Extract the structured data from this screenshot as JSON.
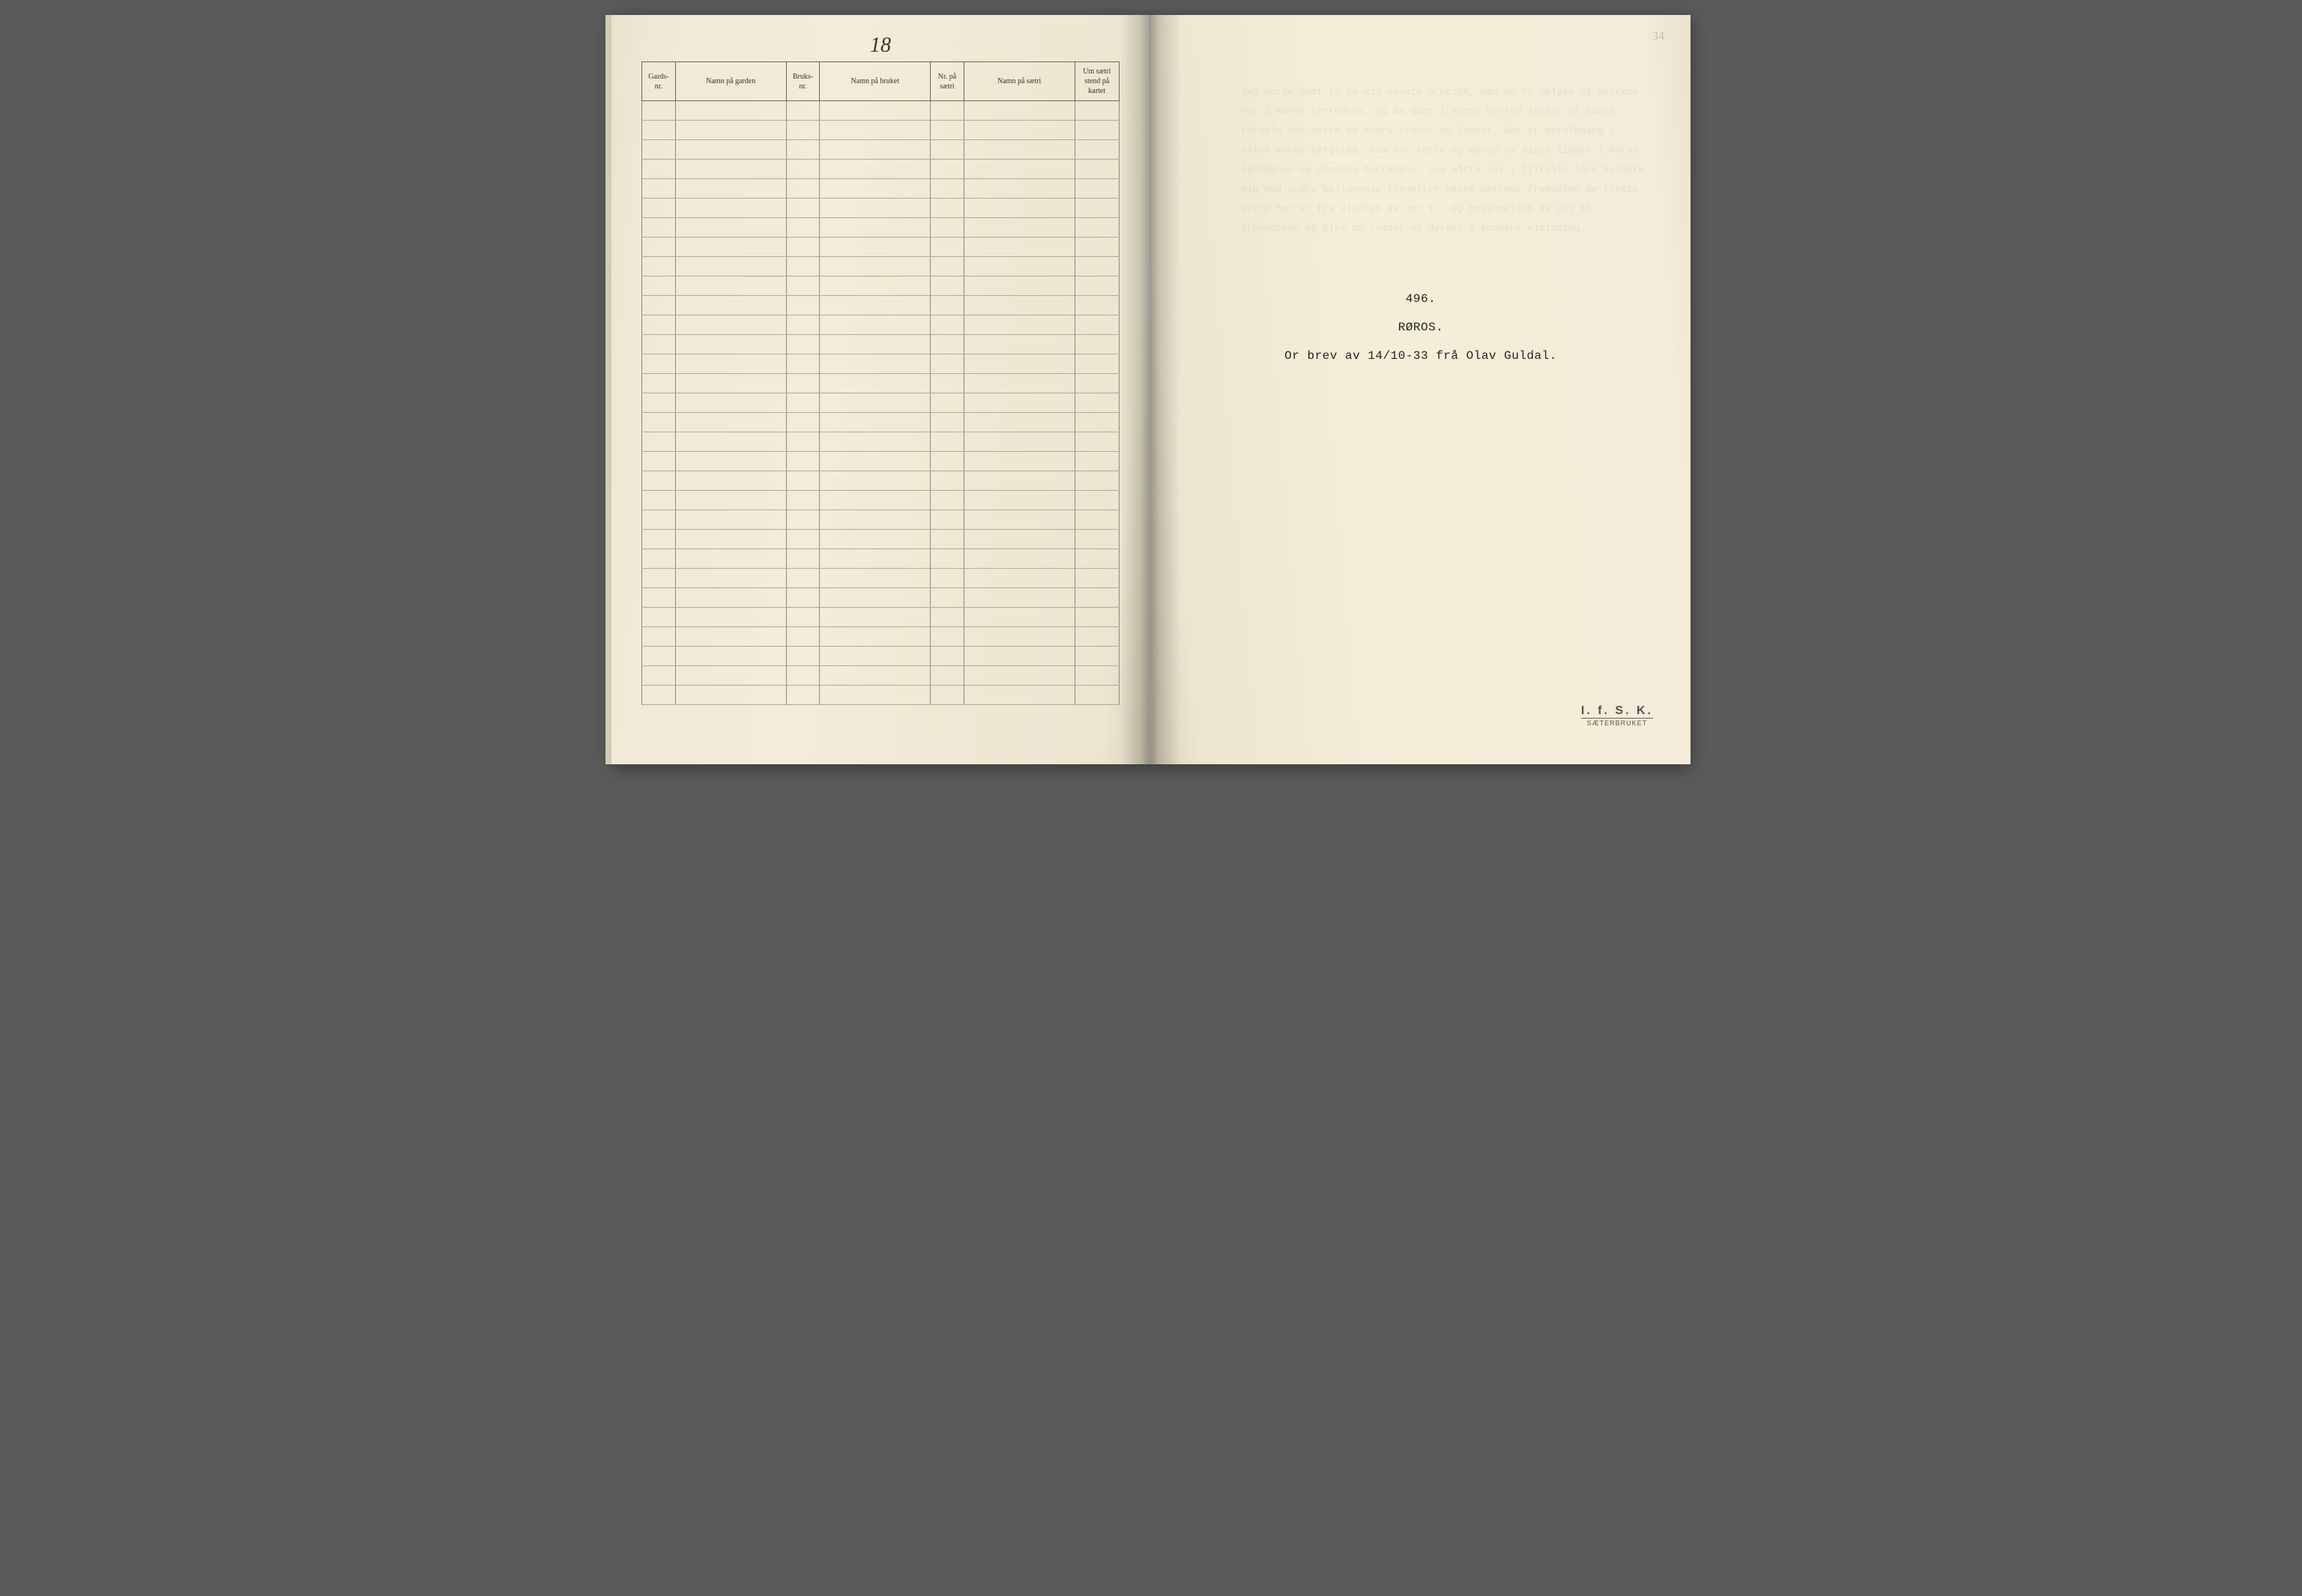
{
  "leftPage": {
    "handwrittenNumber": "18",
    "tableHeaders": {
      "col1": "Gards-\nnr.",
      "col2": "Namn på garden",
      "col3": "Bruks-\nnr.",
      "col4": "Namn på bruket",
      "col5": "Nr. på\nsætri",
      "col6": "Namn på sætri",
      "col7": "Um sætri\nstend\npå kartet"
    },
    "rowCount": 31,
    "columns": [
      {
        "class": "col-narrow"
      },
      {
        "class": "col-wide"
      },
      {
        "class": "col-narrow"
      },
      {
        "class": "col-wide"
      },
      {
        "class": "col-narrow"
      },
      {
        "class": "col-wide"
      },
      {
        "class": "col-med"
      }
    ]
  },
  "rightPage": {
    "pageCornerNumber": "34",
    "typedNumber": "496.",
    "typedPlace": "RØROS.",
    "typedNote": "Or brev av 14/10-33 frå Olav Guldal.",
    "stamp": {
      "line1": "I. f. S. K.",
      "line2": "SÆTERBRUKET"
    }
  },
  "colors": {
    "paperBase": "#f2ecd8",
    "paperShade": "#e8e2ce",
    "tableBorder": "#666666",
    "tableRowBorder": "#aaaaaa",
    "typedText": "#222222",
    "stampText": "#555555"
  }
}
